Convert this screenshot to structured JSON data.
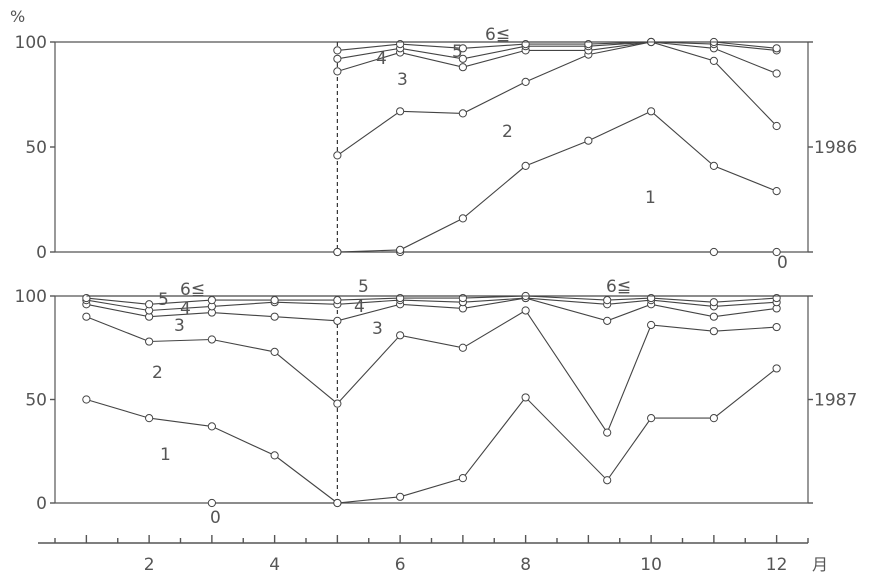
{
  "chart_data": [
    {
      "type": "area",
      "panel": "top",
      "year_label": "1986",
      "y_unit": "%",
      "ylim": [
        0,
        100
      ],
      "yticks": [
        "0",
        "50",
        "100"
      ],
      "xlim": [
        0.5,
        12.5
      ],
      "x": [
        5,
        6,
        7,
        8,
        9,
        10,
        11,
        12
      ],
      "divider_x": 5,
      "series": [
        {
          "name": "0",
          "values": [
            0,
            0,
            null,
            null,
            null,
            null,
            0,
            0
          ]
        },
        {
          "name": "1",
          "values": [
            0,
            1,
            16,
            41,
            53,
            67,
            41,
            29
          ]
        },
        {
          "name": "2",
          "values": [
            46,
            67,
            66,
            81,
            94,
            100,
            91,
            60
          ]
        },
        {
          "name": "3",
          "values": [
            86,
            95,
            88,
            96,
            96,
            100,
            97,
            85
          ]
        },
        {
          "name": "4",
          "values": [
            92,
            97,
            92,
            98,
            98,
            100,
            99,
            96
          ]
        },
        {
          "name": "5",
          "values": [
            96,
            99,
            97,
            99,
            99,
            100,
            100,
            97
          ]
        }
      ],
      "band_labels": [
        "0",
        "1",
        "2",
        "3",
        "4",
        "5",
        "6≦"
      ]
    },
    {
      "type": "area",
      "panel": "bottom",
      "year_label": "1987",
      "ylim": [
        0,
        100
      ],
      "yticks": [
        "0",
        "50",
        "100"
      ],
      "xlim": [
        0.5,
        12.5
      ],
      "x": [
        1,
        2,
        3,
        4,
        5,
        6,
        7,
        8,
        9.3,
        10,
        11,
        12
      ],
      "divider_x": 5,
      "series": [
        {
          "name": "0",
          "values": [
            null,
            null,
            0,
            null,
            0,
            null,
            null,
            null,
            null,
            null,
            null,
            null
          ]
        },
        {
          "name": "1",
          "values": [
            50,
            41,
            37,
            23,
            0,
            3,
            12,
            51,
            11,
            41,
            41,
            65
          ]
        },
        {
          "name": "2",
          "values": [
            90,
            78,
            79,
            73,
            48,
            81,
            75,
            93,
            34,
            86,
            83,
            85
          ]
        },
        {
          "name": "3",
          "values": [
            96,
            90,
            92,
            90,
            88,
            96,
            94,
            99,
            88,
            96,
            90,
            94
          ]
        },
        {
          "name": "4",
          "values": [
            98,
            93,
            95,
            97,
            96,
            98,
            97,
            99,
            96,
            98,
            95,
            97
          ]
        },
        {
          "name": "5",
          "values": [
            99,
            96,
            98,
            98,
            98,
            99,
            99,
            100,
            98,
            99,
            97,
            99
          ]
        }
      ],
      "band_labels": [
        "0",
        "1",
        "2",
        "3",
        "4",
        "5",
        "6≦",
        "3",
        "4",
        "5",
        "6≦"
      ]
    }
  ],
  "x_axis": {
    "tick_labels": [
      "2",
      "4",
      "6",
      "8",
      "10",
      "12"
    ],
    "unit": "月"
  }
}
